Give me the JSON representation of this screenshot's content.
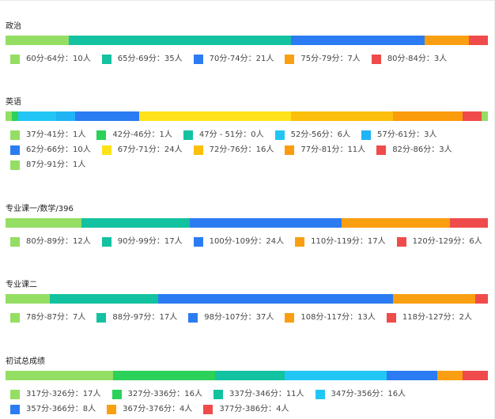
{
  "colors": {
    "c1": "#95de64",
    "c2": "#13c2a0",
    "c3": "#2b7cf2",
    "c4": "#fa9f11",
    "c5": "#f04b4b",
    "c6": "#2bd159",
    "c7": "#22c6f5",
    "c8": "#ffe21a",
    "c9": "#fbbf0b",
    "c10": "#fb9c0c",
    "c11": "#20b4f5"
  },
  "chart_data": [
    {
      "type": "bar",
      "stacked": "horizontal-100%",
      "title": "政治",
      "series": [
        {
          "name": "60分-64分",
          "value": 10,
          "label": "60分-64分：10人",
          "color": "#95de64"
        },
        {
          "name": "65分-69分",
          "value": 35,
          "label": "65分-69分：35人",
          "color": "#13c2a0"
        },
        {
          "name": "70分-74分",
          "value": 21,
          "label": "70分-74分：21人",
          "color": "#2b7cf2"
        },
        {
          "name": "75分-79分",
          "value": 7,
          "label": "75分-79分：7人",
          "color": "#fa9f11"
        },
        {
          "name": "80分-84分",
          "value": 3,
          "label": "80分-84分：3人",
          "color": "#f04b4b"
        }
      ],
      "legend_rows": [
        [
          0,
          1,
          2,
          3,
          4
        ]
      ]
    },
    {
      "type": "bar",
      "stacked": "horizontal-100%",
      "title": "英语",
      "series": [
        {
          "name": "37分-41分",
          "value": 1,
          "label": "37分-41分：1人",
          "color": "#95de64"
        },
        {
          "name": "42分-46分",
          "value": 1,
          "label": "42分-46分：1人",
          "color": "#2bd159"
        },
        {
          "name": "47分 - 51分",
          "value": 0,
          "label": "47分 - 51分：0人",
          "color": "#13c2a0"
        },
        {
          "name": "52分-56分",
          "value": 6,
          "label": "52分-56分：6人",
          "color": "#22c6f5"
        },
        {
          "name": "57分-61分",
          "value": 3,
          "label": "57分-61分：3人",
          "color": "#20b4f5"
        },
        {
          "name": "62分-66分",
          "value": 10,
          "label": "62分-66分：10人",
          "color": "#2b7cf2"
        },
        {
          "name": "67分-71分",
          "value": 24,
          "label": "67分-71分：24人",
          "color": "#ffe21a"
        },
        {
          "name": "72分-76分",
          "value": 16,
          "label": "72分-76分：16人",
          "color": "#fbbf0b"
        },
        {
          "name": "77分-81分",
          "value": 11,
          "label": "77分-81分：11人",
          "color": "#fb9c0c"
        },
        {
          "name": "82分-86分",
          "value": 3,
          "label": "82分-86分：3人",
          "color": "#f04b4b"
        },
        {
          "name": "87分-91分",
          "value": 1,
          "label": "87分-91分：1人",
          "color": "#95de64"
        }
      ],
      "legend_rows": [
        [
          0,
          1,
          2,
          3,
          4
        ],
        [
          5,
          6,
          7,
          8,
          9
        ],
        [
          10
        ]
      ]
    },
    {
      "type": "bar",
      "stacked": "horizontal-100%",
      "title": "专业课一/数学/396",
      "series": [
        {
          "name": "80分-89分",
          "value": 12,
          "label": "80分-89分：12人",
          "color": "#95de64"
        },
        {
          "name": "90分-99分",
          "value": 17,
          "label": "90分-99分：17人",
          "color": "#13c2a0"
        },
        {
          "name": "100分-109分",
          "value": 24,
          "label": "100分-109分：24人",
          "color": "#2b7cf2"
        },
        {
          "name": "110分-119分",
          "value": 17,
          "label": "110分-119分：17人",
          "color": "#fa9f11"
        },
        {
          "name": "120分-129分",
          "value": 6,
          "label": "120分-129分：6人",
          "color": "#f04b4b"
        }
      ],
      "legend_rows": [
        [
          0,
          1,
          2,
          3,
          4
        ]
      ]
    },
    {
      "type": "bar",
      "stacked": "horizontal-100%",
      "title": "专业课二",
      "series": [
        {
          "name": "78分-87分",
          "value": 7,
          "label": "78分-87分：7人",
          "color": "#95de64"
        },
        {
          "name": "88分-97分",
          "value": 17,
          "label": "88分-97分：17人",
          "color": "#13c2a0"
        },
        {
          "name": "98分-107分",
          "value": 37,
          "label": "98分-107分：37人",
          "color": "#2b7cf2"
        },
        {
          "name": "108分-117分",
          "value": 13,
          "label": "108分-117分：13人",
          "color": "#fa9f11"
        },
        {
          "name": "118分-127分",
          "value": 2,
          "label": "118分-127分：2人",
          "color": "#f04b4b"
        }
      ],
      "legend_rows": [
        [
          0,
          1,
          2,
          3,
          4
        ]
      ]
    },
    {
      "type": "bar",
      "stacked": "horizontal-100%",
      "title": "初试总成绩",
      "series": [
        {
          "name": "317分-326分",
          "value": 17,
          "label": "317分-326分：17人",
          "color": "#95de64"
        },
        {
          "name": "327分-336分",
          "value": 16,
          "label": "327分-336分：16人",
          "color": "#2bd159"
        },
        {
          "name": "337分-346分",
          "value": 11,
          "label": "337分-346分：11人",
          "color": "#13c2a0"
        },
        {
          "name": "347分-356分",
          "value": 16,
          "label": "347分-356分：16人",
          "color": "#22c6f5"
        },
        {
          "name": "357分-366分",
          "value": 8,
          "label": "357分-366分：8人",
          "color": "#2b7cf2"
        },
        {
          "name": "367分-376分",
          "value": 4,
          "label": "367分-376分：4人",
          "color": "#fa9f11"
        },
        {
          "name": "377分-386分",
          "value": 4,
          "label": "377分-386分：4人",
          "color": "#f04b4b"
        }
      ],
      "legend_rows": [
        [
          0,
          1,
          2,
          3
        ],
        [
          4,
          5,
          6
        ]
      ]
    }
  ]
}
